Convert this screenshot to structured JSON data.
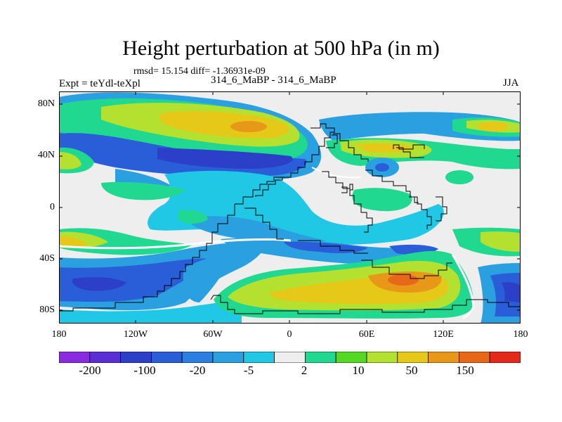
{
  "title": "Height perturbation at 500 hPa (in m)",
  "stats_text": "rmsd= 15.154 diff= -1.36931e-09",
  "experiment_label": "Expt = teYdl-teXpl",
  "subtitle": "314_6_MaBP - 314_6_MaBP",
  "season": "JJA",
  "map": {
    "lat_ticks": [
      "80N",
      "40N",
      "0",
      "40S",
      "80S"
    ],
    "lon_ticks": [
      "180",
      "120W",
      "60W",
      "0",
      "60E",
      "120E",
      "180"
    ]
  },
  "colorbar": {
    "colors": [
      "#8a2be2",
      "#5a2fd6",
      "#2c3fc8",
      "#2a5ed8",
      "#2c7fe0",
      "#2aa0e0",
      "#20c8e6",
      "#eeeeee",
      "#20d890",
      "#54d824",
      "#b4e030",
      "#e6c818",
      "#e89818",
      "#e66818",
      "#e62818"
    ],
    "labels": [
      "-200",
      "-100",
      "-20",
      "-5",
      "2",
      "10",
      "50",
      "150"
    ]
  }
}
